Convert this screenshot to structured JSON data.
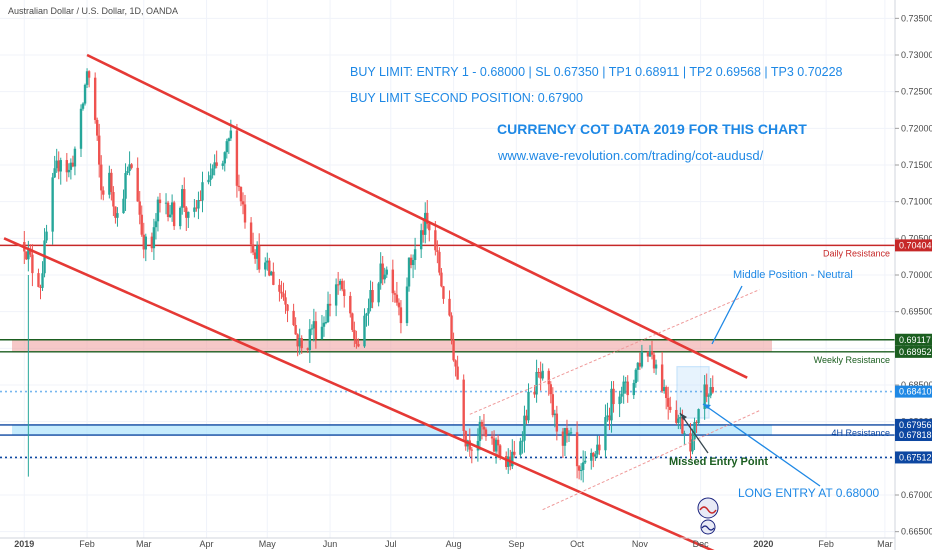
{
  "header": {
    "symbol": "Australian Dollar / U.S. Dollar, 1D, OANDA"
  },
  "chart_data": {
    "type": "candlestick",
    "ylim": [
      0.6625,
      0.7375
    ],
    "y_ticks": [
      0.665,
      0.67,
      0.675,
      0.68,
      0.685,
      0.69,
      0.695,
      0.7,
      0.705,
      0.71,
      0.715,
      0.72,
      0.725,
      0.73,
      0.735
    ],
    "y_tick_labels": [
      "0.66500",
      "0.67000",
      "0.67500",
      "0.68000",
      "0.68500",
      "0.69000",
      "0.69500",
      "0.70000",
      "0.70500",
      "0.71000",
      "0.71500",
      "0.72000",
      "0.72500",
      "0.73000",
      "0.73500"
    ],
    "x_labels": [
      "2019",
      "Feb",
      "Mar",
      "Apr",
      "May",
      "Jun",
      "Jul",
      "Aug",
      "Sep",
      "Oct",
      "Nov",
      "Dec",
      "2020",
      "Feb",
      "Mar"
    ],
    "x_label_days": [
      0,
      31,
      59,
      90,
      120,
      151,
      181,
      212,
      243,
      273,
      304,
      334,
      365,
      396,
      425
    ],
    "close_path": [
      [
        0,
        0.7045
      ],
      [
        4,
        0.701
      ],
      [
        8,
        0.699
      ],
      [
        14,
        0.712
      ],
      [
        18,
        0.7165
      ],
      [
        22,
        0.714
      ],
      [
        27,
        0.719
      ],
      [
        31,
        0.728
      ],
      [
        34,
        0.724
      ],
      [
        38,
        0.7115
      ],
      [
        42,
        0.713
      ],
      [
        46,
        0.708
      ],
      [
        50,
        0.713
      ],
      [
        54,
        0.7155
      ],
      [
        58,
        0.706
      ],
      [
        62,
        0.702
      ],
      [
        66,
        0.709
      ],
      [
        70,
        0.71
      ],
      [
        74,
        0.708
      ],
      [
        78,
        0.711
      ],
      [
        82,
        0.706
      ],
      [
        86,
        0.71
      ],
      [
        90,
        0.713
      ],
      [
        94,
        0.714
      ],
      [
        98,
        0.715
      ],
      [
        102,
        0.719
      ],
      [
        106,
        0.712
      ],
      [
        110,
        0.707
      ],
      [
        114,
        0.7035
      ],
      [
        118,
        0.701
      ],
      [
        122,
        0.7
      ],
      [
        126,
        0.698
      ],
      [
        130,
        0.6965
      ],
      [
        134,
        0.692
      ],
      [
        138,
        0.689
      ],
      [
        142,
        0.693
      ],
      [
        146,
        0.6925
      ],
      [
        150,
        0.6955
      ],
      [
        154,
        0.699
      ],
      [
        158,
        0.697
      ],
      [
        162,
        0.692
      ],
      [
        166,
        0.69
      ],
      [
        170,
        0.696
      ],
      [
        174,
        0.699
      ],
      [
        178,
        0.701
      ],
      [
        182,
        0.699
      ],
      [
        186,
        0.695
      ],
      [
        190,
        0.701
      ],
      [
        194,
        0.704
      ],
      [
        198,
        0.707
      ],
      [
        202,
        0.705
      ],
      [
        206,
        0.699
      ],
      [
        210,
        0.693
      ],
      [
        214,
        0.686
      ],
      [
        218,
        0.678
      ],
      [
        222,
        0.677
      ],
      [
        226,
        0.679
      ],
      [
        230,
        0.676
      ],
      [
        234,
        0.677
      ],
      [
        238,
        0.674
      ],
      [
        242,
        0.675
      ],
      [
        246,
        0.679
      ],
      [
        250,
        0.684
      ],
      [
        254,
        0.686
      ],
      [
        258,
        0.685
      ],
      [
        262,
        0.68
      ],
      [
        266,
        0.678
      ],
      [
        270,
        0.677
      ],
      [
        274,
        0.672
      ],
      [
        278,
        0.674
      ],
      [
        282,
        0.676
      ],
      [
        286,
        0.678
      ],
      [
        290,
        0.683
      ],
      [
        294,
        0.685
      ],
      [
        298,
        0.684
      ],
      [
        302,
        0.687
      ],
      [
        306,
        0.69
      ],
      [
        310,
        0.6895
      ],
      [
        314,
        0.686
      ],
      [
        318,
        0.683
      ],
      [
        322,
        0.681
      ],
      [
        326,
        0.679
      ],
      [
        330,
        0.677
      ],
      [
        334,
        0.684
      ],
      [
        338,
        0.685
      ],
      [
        341,
        0.6841
      ]
    ],
    "levels": [
      {
        "label": "Daily Resistance",
        "value": 0.70404,
        "tag": "0.70404",
        "color": "#c62828"
      },
      {
        "label": "Weekly Resistance",
        "value": 0.68952,
        "tag": "0.68952",
        "color": "#1b5e20"
      },
      {
        "label": "",
        "value": 0.69117,
        "tag": "0.69117",
        "color": "#1b5e20"
      },
      {
        "label": "4H Resistance",
        "value": 0.67956,
        "tag": "0.67956",
        "color": "#0d47a1"
      },
      {
        "label": "",
        "value": 0.67818,
        "tag": "0.67818",
        "color": "#0d47a1"
      },
      {
        "label": "",
        "value": 0.67512,
        "tag": "0.67512",
        "color": "#0d47a1"
      },
      {
        "label": "",
        "value": 0.6841,
        "tag": "0.68410",
        "color": "#1e88e5"
      }
    ],
    "channel_lines": [
      {
        "from": [
          31,
          0.73
        ],
        "to": [
          357,
          0.686
        ]
      },
      {
        "from": [
          -10,
          0.705
        ],
        "to": [
          350,
          0.6612
        ]
      }
    ],
    "annotations": {
      "buy_limit": "BUY LIMIT: ENTRY 1 - 0.68000 | SL 0.67350 | TP1 0.68911 | TP2 0.69568 | TP3 0.70228",
      "second_position": "BUY LIMIT SECOND POSITION: 0.67900",
      "heading": "CURRENCY COT DATA 2019 FOR THIS CHART",
      "url": "www.wave-revolution.com/trading/cot-audusd/",
      "middle_position": "Middle Position - Neutral",
      "missed_entry": "Missed Entry Point",
      "long_entry": "LONG ENTRY AT 0.68000"
    },
    "colors": {
      "up": "#26a69a",
      "down": "#ef5350",
      "channel": "#e53935",
      "annotation": "#1e88e5"
    }
  }
}
